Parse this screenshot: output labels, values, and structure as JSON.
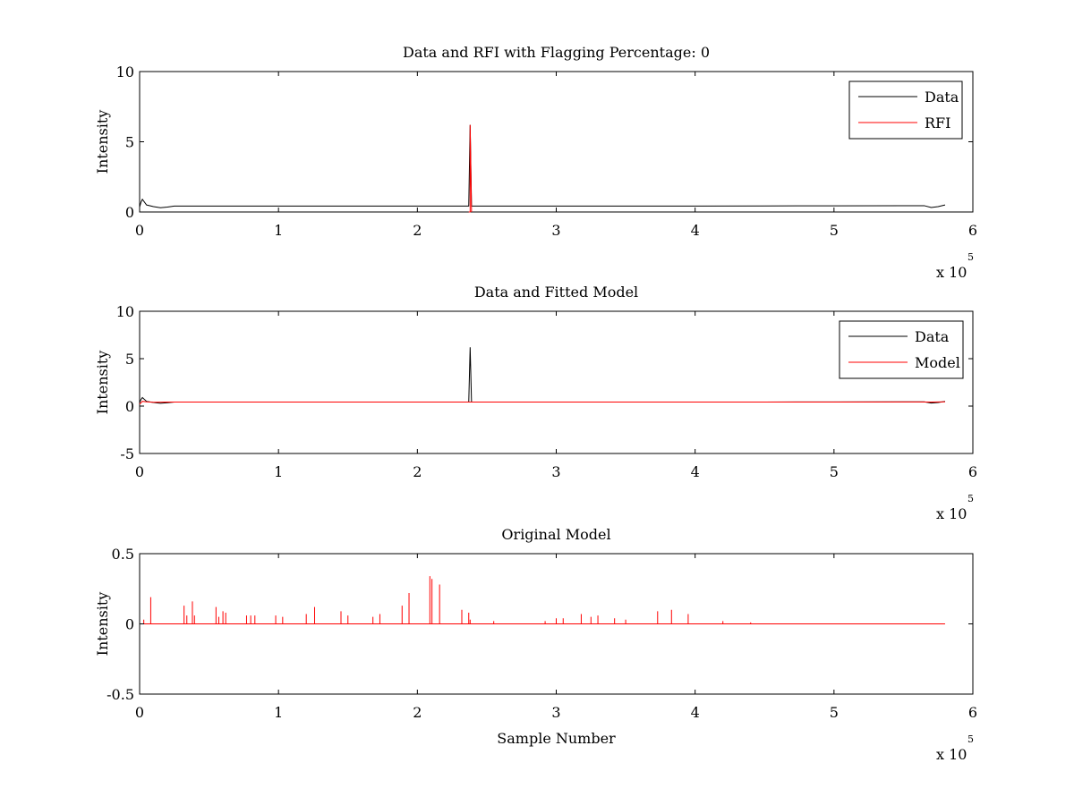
{
  "chart_data": [
    {
      "type": "line",
      "title": "Data and RFI with Flagging Percentage: 0",
      "xlabel": "",
      "ylabel": "Intensity",
      "xlim": [
        0,
        600000
      ],
      "ylim": [
        0,
        10
      ],
      "xticks": [
        0,
        1,
        2,
        3,
        4,
        5,
        6
      ],
      "xtick_labels": [
        "0",
        "1",
        "2",
        "3",
        "4",
        "5",
        "6"
      ],
      "yticks": [
        0,
        5,
        10
      ],
      "ytick_labels": [
        "0",
        "5",
        "10"
      ],
      "x_multiplier": "x 10",
      "x_multiplier_exponent": "5",
      "legend": {
        "placement": "top-right",
        "entries": [
          "Data",
          "RFI"
        ]
      },
      "series": [
        {
          "name": "Data",
          "color": "#000000",
          "x": [
            0,
            1000,
            2000,
            5000,
            10000,
            15000,
            20000,
            25000,
            50000,
            100000,
            150000,
            200000,
            237000,
            238000,
            239000,
            240000,
            300000,
            350000,
            400000,
            450000,
            500000,
            550000,
            565000,
            570000,
            575000,
            580000
          ],
          "y": [
            0.35,
            0.7,
            0.9,
            0.5,
            0.38,
            0.3,
            0.35,
            0.42,
            0.42,
            0.42,
            0.42,
            0.42,
            0.42,
            6.2,
            0.42,
            0.42,
            0.42,
            0.42,
            0.42,
            0.43,
            0.44,
            0.45,
            0.45,
            0.32,
            0.38,
            0.5
          ]
        },
        {
          "name": "RFI",
          "color": "#ff0000",
          "x": [
            237000,
            238000,
            238000,
            239000
          ],
          "y": [
            0,
            0,
            6.2,
            0
          ]
        }
      ]
    },
    {
      "type": "line",
      "title": "Data and Fitted Model",
      "xlabel": "",
      "ylabel": "Intensity",
      "xlim": [
        0,
        600000
      ],
      "ylim": [
        -5,
        10
      ],
      "xticks": [
        0,
        1,
        2,
        3,
        4,
        5,
        6
      ],
      "xtick_labels": [
        "0",
        "1",
        "2",
        "3",
        "4",
        "5",
        "6"
      ],
      "yticks": [
        -5,
        0,
        5,
        10
      ],
      "ytick_labels": [
        "-5",
        "0",
        "5",
        "10"
      ],
      "x_multiplier": "x 10",
      "x_multiplier_exponent": "5",
      "legend": {
        "placement": "top-right",
        "entries": [
          "Data",
          "Model"
        ]
      },
      "series": [
        {
          "name": "Data",
          "color": "#000000",
          "x": [
            0,
            1000,
            2000,
            5000,
            10000,
            15000,
            20000,
            25000,
            50000,
            100000,
            150000,
            200000,
            237000,
            238000,
            239000,
            240000,
            300000,
            350000,
            400000,
            450000,
            500000,
            550000,
            565000,
            570000,
            575000,
            580000
          ],
          "y": [
            0.35,
            0.7,
            0.9,
            0.5,
            0.38,
            0.3,
            0.35,
            0.42,
            0.42,
            0.42,
            0.42,
            0.42,
            0.42,
            6.2,
            0.42,
            0.42,
            0.42,
            0.42,
            0.42,
            0.43,
            0.44,
            0.45,
            0.45,
            0.32,
            0.38,
            0.5
          ]
        },
        {
          "name": "Model",
          "color": "#ff0000",
          "x": [
            0,
            2000,
            5000,
            10000,
            20000,
            100000,
            200000,
            300000,
            400000,
            500000,
            560000,
            570000,
            580000
          ],
          "y": [
            0.2,
            0.5,
            0.45,
            0.4,
            0.42,
            0.42,
            0.42,
            0.42,
            0.42,
            0.43,
            0.44,
            0.42,
            0.45
          ]
        }
      ]
    },
    {
      "type": "line",
      "title": "Original Model",
      "xlabel": "Sample Number",
      "ylabel": "Intensity",
      "xlim": [
        0,
        600000
      ],
      "ylim": [
        -0.5,
        0.5
      ],
      "xticks": [
        0,
        1,
        2,
        3,
        4,
        5,
        6
      ],
      "xtick_labels": [
        "0",
        "1",
        "2",
        "3",
        "4",
        "5",
        "6"
      ],
      "yticks": [
        -0.5,
        0,
        0.5
      ],
      "ytick_labels": [
        "-0.5",
        "0",
        "0.5"
      ],
      "x_multiplier": "x 10",
      "x_multiplier_exponent": "5",
      "legend": null,
      "series": [
        {
          "color": "#ff0000",
          "peaks": [
            [
              3000,
              0.03
            ],
            [
              8000,
              0.19
            ],
            [
              32000,
              0.13
            ],
            [
              34000,
              0.06
            ],
            [
              38000,
              0.16
            ],
            [
              39500,
              0.06
            ],
            [
              55000,
              0.12
            ],
            [
              57000,
              0.05
            ],
            [
              60000,
              0.09
            ],
            [
              62000,
              0.08
            ],
            [
              77000,
              0.06
            ],
            [
              80000,
              0.06
            ],
            [
              83000,
              0.06
            ],
            [
              98000,
              0.06
            ],
            [
              103000,
              0.05
            ],
            [
              120000,
              0.07
            ],
            [
              126000,
              0.12
            ],
            [
              145000,
              0.09
            ],
            [
              150000,
              0.06
            ],
            [
              168000,
              0.05
            ],
            [
              173000,
              0.07
            ],
            [
              189000,
              0.13
            ],
            [
              194000,
              0.22
            ],
            [
              209000,
              0.34
            ],
            [
              210500,
              0.32
            ],
            [
              216000,
              0.28
            ],
            [
              232000,
              0.1
            ],
            [
              237000,
              0.08
            ],
            [
              238000,
              0.03
            ],
            [
              255000,
              0.02
            ],
            [
              292000,
              0.02
            ],
            [
              300000,
              0.04
            ],
            [
              305000,
              0.04
            ],
            [
              318000,
              0.07
            ],
            [
              325000,
              0.05
            ],
            [
              330000,
              0.06
            ],
            [
              342000,
              0.04
            ],
            [
              350000,
              0.03
            ],
            [
              373000,
              0.09
            ],
            [
              383000,
              0.1
            ],
            [
              395000,
              0.07
            ],
            [
              420000,
              0.02
            ],
            [
              440000,
              0.01
            ]
          ]
        }
      ]
    }
  ]
}
